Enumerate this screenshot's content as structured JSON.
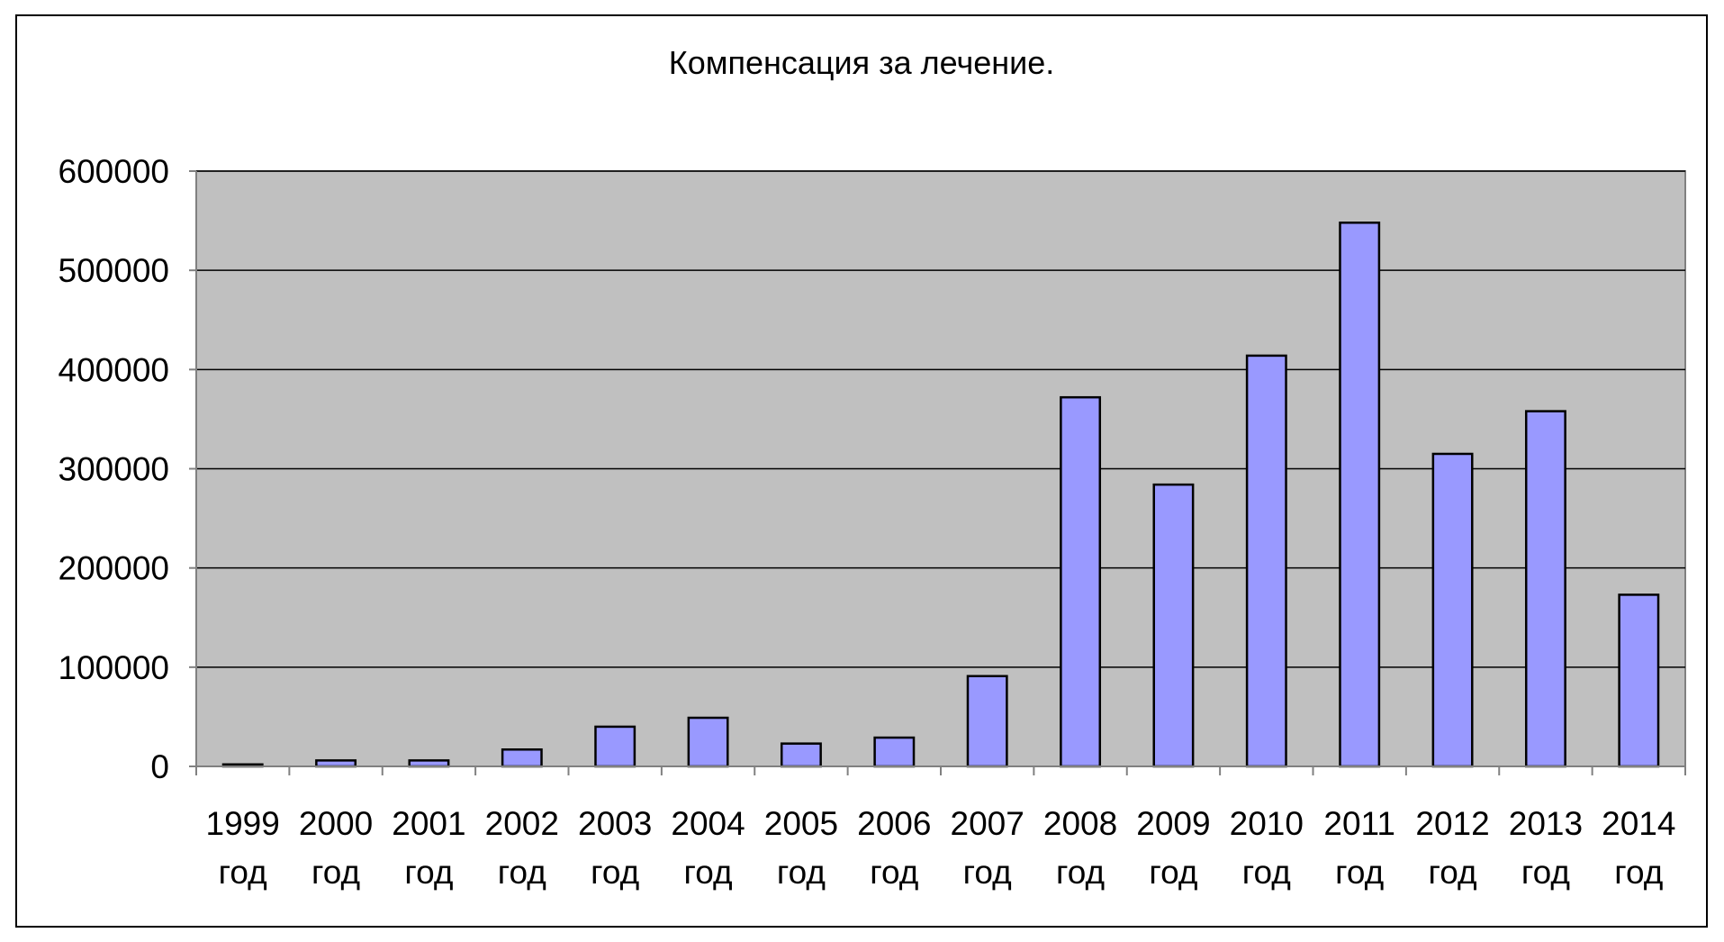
{
  "chart_data": {
    "type": "bar",
    "title": "Компенсация за лечение.",
    "xlabel": "",
    "ylabel": "",
    "ylim": [
      0,
      600000
    ],
    "yticks": [
      0,
      100000,
      200000,
      300000,
      400000,
      500000,
      600000
    ],
    "ytick_labels": [
      "0",
      "100000",
      "200000",
      "300000",
      "400000",
      "500000",
      "600000"
    ],
    "categories": [
      "1999 год",
      "2000 год",
      "2001 год",
      "2002 год",
      "2003 год",
      "2004 год",
      "2005 год",
      "2006 год",
      "2007 год",
      "2008 год",
      "2009 год",
      "2010 год",
      "2011 год",
      "2012 год",
      "2013 год",
      "2014 год"
    ],
    "values": [
      2000,
      6000,
      6000,
      17000,
      40000,
      49000,
      23000,
      29000,
      91000,
      372000,
      284000,
      414000,
      548000,
      315000,
      358000,
      173000
    ],
    "grid": true,
    "legend": "none",
    "colors": {
      "plot_background": "#c0c0c0",
      "bar_fill": "#9999ff",
      "bar_stroke": "#000000",
      "gridline": "#000000",
      "axis": "#808080"
    }
  }
}
